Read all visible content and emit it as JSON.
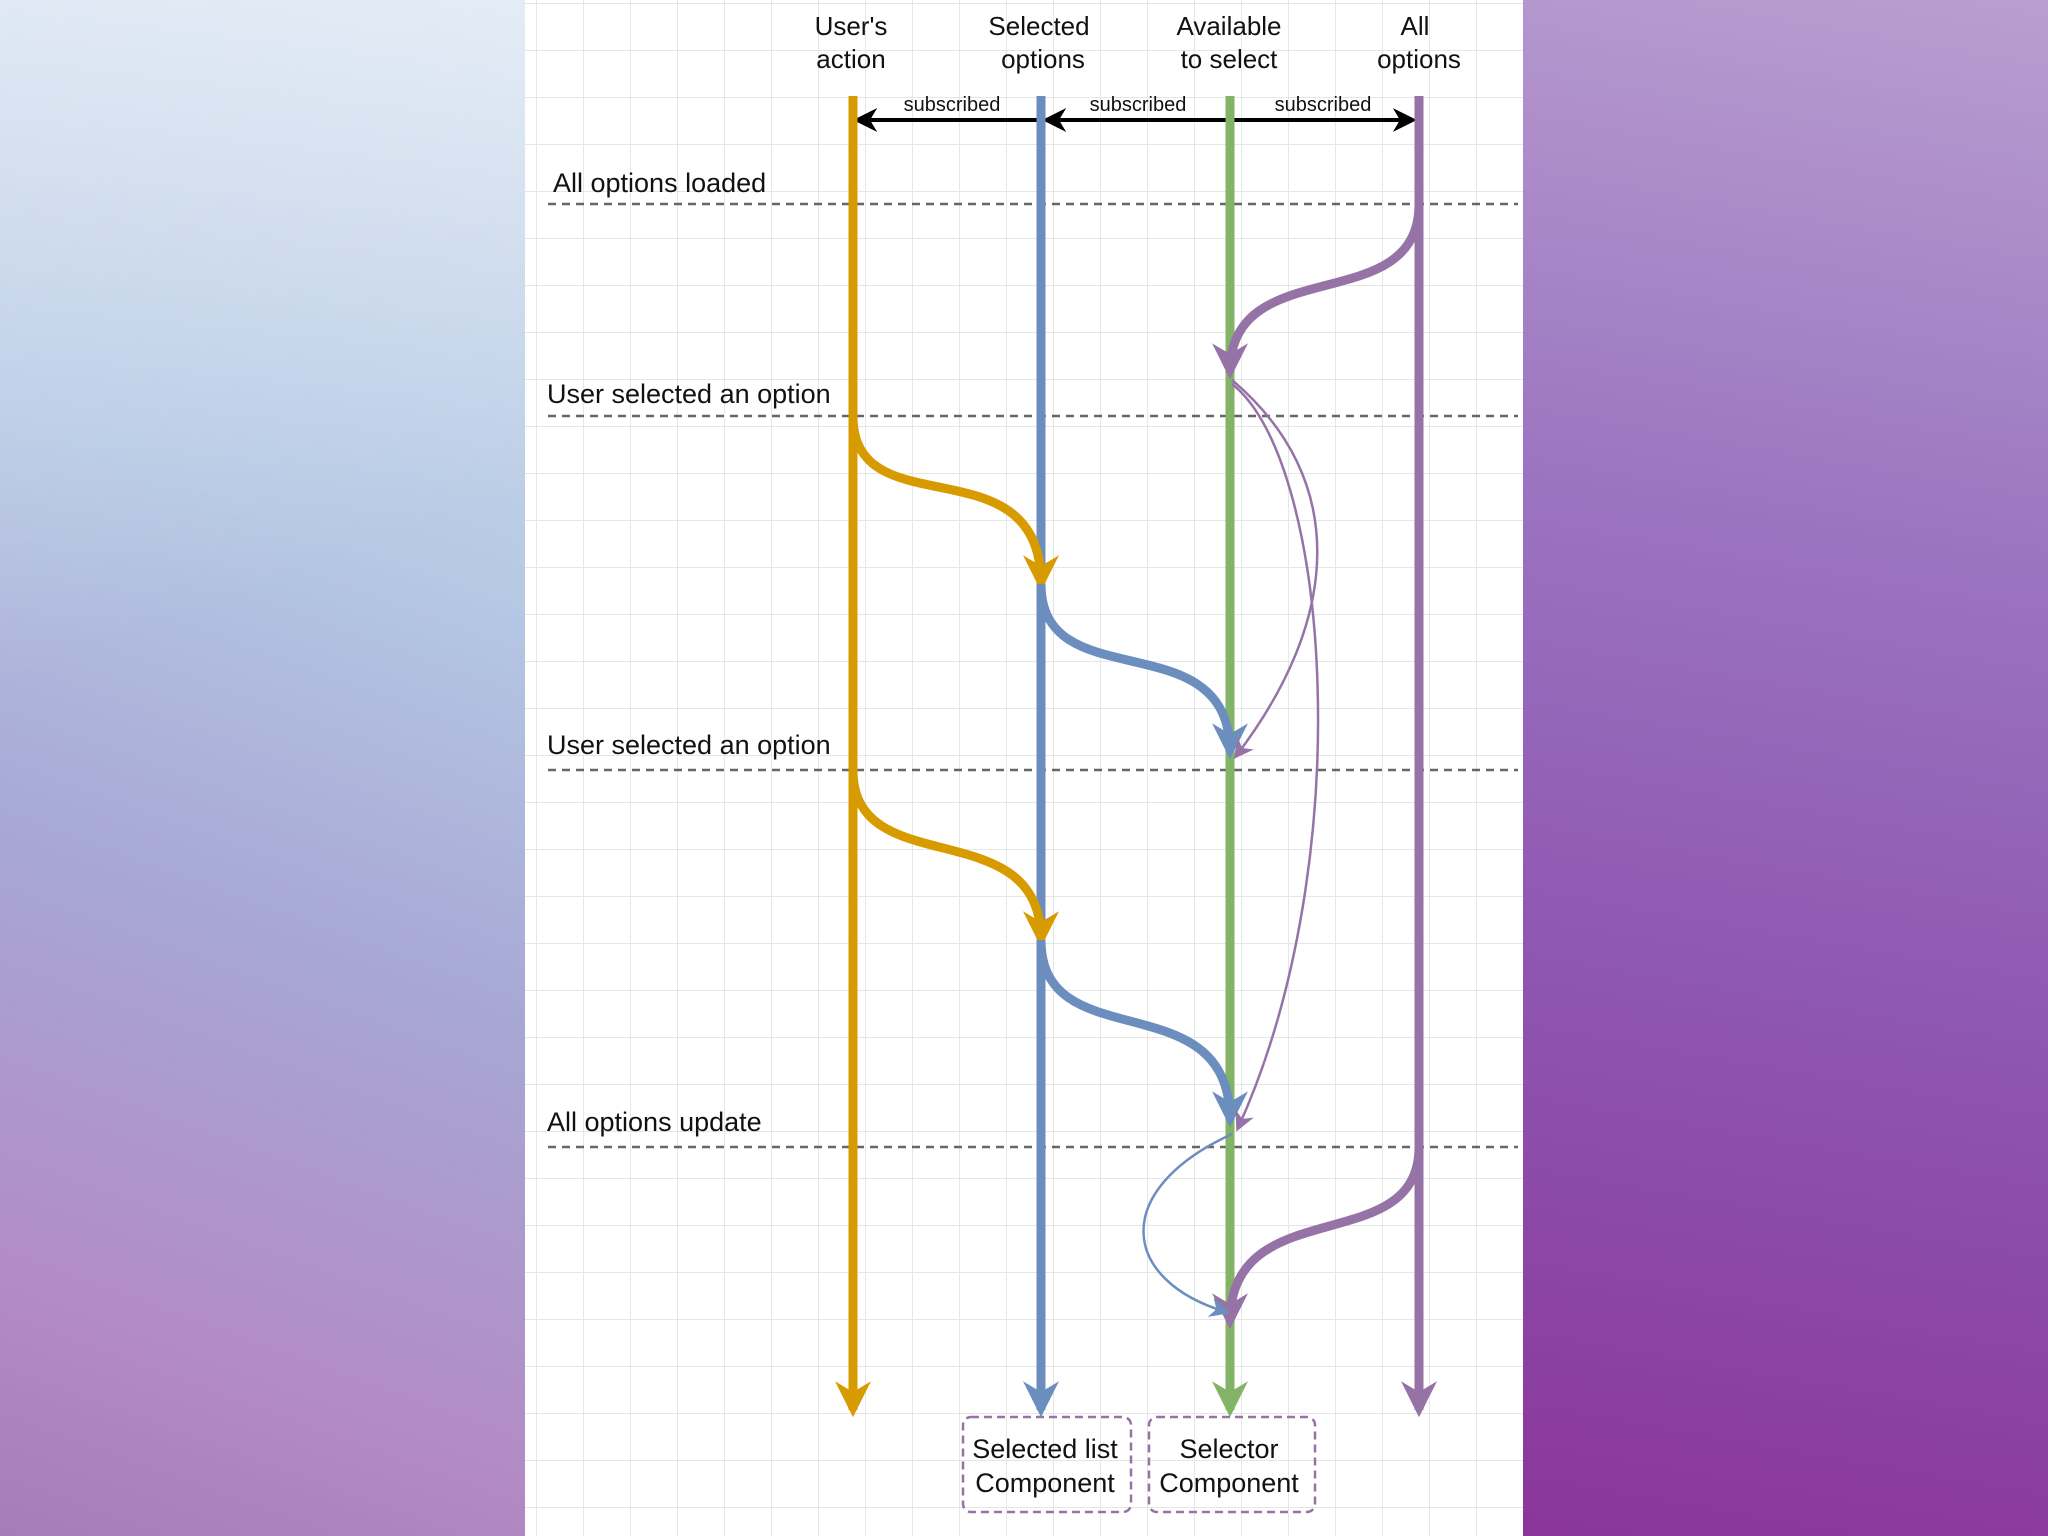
{
  "lanes": [
    {
      "title_line1": "User's",
      "title_line2": "action",
      "color": "#d79b00"
    },
    {
      "title_line1": "Selected",
      "title_line2": "options",
      "color": "#6c8ebf"
    },
    {
      "title_line1": "Available",
      "title_line2": "to select",
      "color": "#82b366"
    },
    {
      "title_line1": "All",
      "title_line2": "options",
      "color": "#9673a6"
    }
  ],
  "subscriptions": [
    "subscribed",
    "subscribed",
    "subscribed"
  ],
  "events": [
    "All options loaded",
    "User selected an option",
    "User selected an option",
    "All options update"
  ],
  "components": [
    {
      "line1": "Selected list",
      "line2": "Component"
    },
    {
      "line1": "Selector",
      "line2": "Component"
    }
  ],
  "colors": {
    "grid": "#e6e6e6",
    "dashed": "#666666",
    "component_border": "#9673a6"
  }
}
